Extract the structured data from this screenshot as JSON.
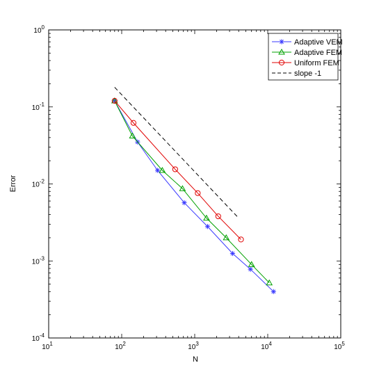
{
  "chart_data": {
    "type": "line",
    "xlabel": "N",
    "ylabel": "Error",
    "xscale": "log",
    "yscale": "log",
    "xlim": [
      10,
      100000
    ],
    "ylim": [
      0.0001,
      1
    ],
    "grid": false,
    "legend_position": "top-right",
    "x_tick_labels": [
      {
        "value": 10,
        "base": "10",
        "exp": "1"
      },
      {
        "value": 100,
        "base": "10",
        "exp": "2"
      },
      {
        "value": 1000,
        "base": "10",
        "exp": "3"
      },
      {
        "value": 10000,
        "base": "10",
        "exp": "4"
      },
      {
        "value": 100000,
        "base": "10",
        "exp": "5"
      }
    ],
    "y_tick_labels": [
      {
        "value": 0.0001,
        "base": "10",
        "exp": "-4"
      },
      {
        "value": 0.001,
        "base": "10",
        "exp": "-3"
      },
      {
        "value": 0.01,
        "base": "10",
        "exp": "-2"
      },
      {
        "value": 0.1,
        "base": "10",
        "exp": "-1"
      },
      {
        "value": 1,
        "base": "10",
        "exp": "0"
      }
    ],
    "series": [
      {
        "name": "Adaptive VEM",
        "color": "#3a3aff",
        "marker": "star",
        "dash": "solid",
        "points": [
          {
            "x": 80,
            "y": 0.12
          },
          {
            "x": 165,
            "y": 0.035
          },
          {
            "x": 310,
            "y": 0.015
          },
          {
            "x": 720,
            "y": 0.0057
          },
          {
            "x": 1500,
            "y": 0.0028
          },
          {
            "x": 3300,
            "y": 0.00125
          },
          {
            "x": 5800,
            "y": 0.00078
          },
          {
            "x": 12000,
            "y": 0.0004
          }
        ]
      },
      {
        "name": "Adaptive FEM",
        "color": "#00a000",
        "marker": "triangle",
        "dash": "solid",
        "points": [
          {
            "x": 80,
            "y": 0.12
          },
          {
            "x": 140,
            "y": 0.042
          },
          {
            "x": 360,
            "y": 0.015
          },
          {
            "x": 680,
            "y": 0.0087
          },
          {
            "x": 1450,
            "y": 0.0036
          },
          {
            "x": 2700,
            "y": 0.002
          },
          {
            "x": 6000,
            "y": 0.0009
          },
          {
            "x": 10500,
            "y": 0.00052
          }
        ]
      },
      {
        "name": "Uniform FEM",
        "color": "#e00000",
        "marker": "circle",
        "dash": "solid",
        "points": [
          {
            "x": 80,
            "y": 0.12
          },
          {
            "x": 145,
            "y": 0.062
          },
          {
            "x": 540,
            "y": 0.0155
          },
          {
            "x": 1100,
            "y": 0.0076
          },
          {
            "x": 2100,
            "y": 0.0038
          },
          {
            "x": 4300,
            "y": 0.0019
          }
        ]
      },
      {
        "name": "slope -1",
        "color": "#000000",
        "marker": "none",
        "dash": "dashed",
        "points": [
          {
            "x": 80,
            "y": 0.18
          },
          {
            "x": 4000,
            "y": 0.0036
          }
        ]
      }
    ]
  }
}
